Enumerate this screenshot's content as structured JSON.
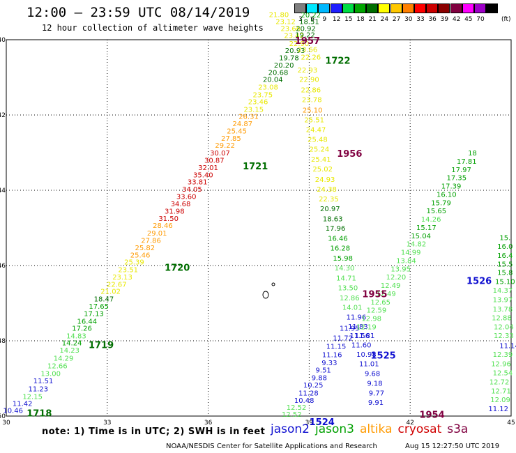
{
  "header": {
    "title": "12:00 – 23:59 UTC 08/14/2019",
    "subtitle": "12 hour collection of altimeter wave heights"
  },
  "colorbar": {
    "unit": "(ft)",
    "swatches": [
      {
        "label": "3",
        "color": "#7f7f7f"
      },
      {
        "label": "6",
        "color": "#00e8ff"
      },
      {
        "label": "9",
        "color": "#00b8ff"
      },
      {
        "label": "12",
        "color": "#1e1eff"
      },
      {
        "label": "15",
        "color": "#00dd44"
      },
      {
        "label": "18",
        "color": "#00a600"
      },
      {
        "label": "21",
        "color": "#006e00"
      },
      {
        "label": "24",
        "color": "#ffff00"
      },
      {
        "label": "27",
        "color": "#ffc800"
      },
      {
        "label": "30",
        "color": "#ff8000"
      },
      {
        "label": "33",
        "color": "#ff0000"
      },
      {
        "label": "36",
        "color": "#cc0000"
      },
      {
        "label": "39",
        "color": "#8b0000"
      },
      {
        "label": "42",
        "color": "#800040"
      },
      {
        "label": "45",
        "color": "#ff00ff"
      },
      {
        "label": "70",
        "color": "#9e00c8"
      },
      {
        "label": "",
        "color": "#000000"
      }
    ]
  },
  "footer": {
    "note": "note:  1) Time is in UTC;  2) SWH is in feet",
    "credit": "NOAA/NESDIS Center for Satellite Applications and Research",
    "timestamp": "Aug 15 12:27:50 UTC 2019"
  },
  "legend": [
    {
      "label": "jason2",
      "color": "#1010d0"
    },
    {
      "label": "jason3",
      "color": "#00a000"
    },
    {
      "label": "altika",
      "color": "#ff9a00"
    },
    {
      "label": "cryosat",
      "color": "#d00000"
    },
    {
      "label": "s3a",
      "color": "#800040"
    }
  ],
  "chart_data": {
    "type": "scatter",
    "xlim": [
      30,
      45
    ],
    "ylim": [
      -50,
      -40
    ],
    "x_ticks": [
      "30",
      "33",
      "36",
      "39",
      "42",
      "45"
    ],
    "x_tick_values": [
      30,
      33,
      36,
      39,
      42,
      45
    ],
    "y_ticks": [
      "-40",
      "-42",
      "-44",
      "-46",
      "-48",
      "-50"
    ],
    "y_tick_values": [
      -40,
      -42,
      -44,
      -46,
      -48,
      -50
    ],
    "grid": "dotted",
    "points": [
      {
        "x": 30.2,
        "y": -49.84,
        "v": "10.46",
        "c": "#1010d0"
      },
      {
        "x": 30.48,
        "y": -49.66,
        "v": "11.42",
        "c": "#1010d0"
      },
      {
        "x": 30.78,
        "y": -49.47,
        "v": "12.15",
        "c": "#52e052"
      },
      {
        "x": 30.95,
        "y": -49.27,
        "v": "11.23",
        "c": "#1010d0"
      },
      {
        "x": 31.1,
        "y": -49.06,
        "v": "11.51",
        "c": "#1010d0"
      },
      {
        "x": 31.32,
        "y": -48.86,
        "v": "13.00",
        "c": "#52e052"
      },
      {
        "x": 31.52,
        "y": -48.66,
        "v": "12.66",
        "c": "#52e052"
      },
      {
        "x": 31.7,
        "y": -48.45,
        "v": "14.29",
        "c": "#52e052"
      },
      {
        "x": 31.88,
        "y": -48.24,
        "v": "14.23",
        "c": "#52e052"
      },
      {
        "x": 31.95,
        "y": -48.05,
        "v": "14.24",
        "c": "#00a000"
      },
      {
        "x": 32.08,
        "y": -47.86,
        "v": "14.83",
        "c": "#52e052"
      },
      {
        "x": 32.25,
        "y": -47.66,
        "v": "17.26",
        "c": "#00a000"
      },
      {
        "x": 32.4,
        "y": -47.47,
        "v": "16.44",
        "c": "#00a000"
      },
      {
        "x": 32.6,
        "y": -47.27,
        "v": "17.13",
        "c": "#00a000"
      },
      {
        "x": 32.75,
        "y": -47.07,
        "v": "17.65",
        "c": "#00a000"
      },
      {
        "x": 32.9,
        "y": -46.88,
        "v": "18.47",
        "c": "#006e00"
      },
      {
        "x": 33.1,
        "y": -46.68,
        "v": "21.02",
        "c": "#e8e800"
      },
      {
        "x": 33.28,
        "y": -46.49,
        "v": "22.67",
        "c": "#e8e800"
      },
      {
        "x": 33.45,
        "y": -46.3,
        "v": "23.13",
        "c": "#e8e800"
      },
      {
        "x": 33.62,
        "y": -46.1,
        "v": "23.51",
        "c": "#e8e800"
      },
      {
        "x": 33.8,
        "y": -45.9,
        "v": "25.39",
        "c": "#e8e800"
      },
      {
        "x": 33.98,
        "y": -45.71,
        "v": "25.46",
        "c": "#ff9a00"
      },
      {
        "x": 34.12,
        "y": -45.52,
        "v": "25.82",
        "c": "#ff9a00"
      },
      {
        "x": 34.3,
        "y": -45.32,
        "v": "27.86",
        "c": "#ff9a00"
      },
      {
        "x": 34.48,
        "y": -45.13,
        "v": "29.01",
        "c": "#ff9a00"
      },
      {
        "x": 34.65,
        "y": -44.93,
        "v": "28.46",
        "c": "#ff9a00"
      },
      {
        "x": 34.82,
        "y": -44.74,
        "v": "31.50",
        "c": "#cc0000"
      },
      {
        "x": 35.0,
        "y": -44.55,
        "v": "31.98",
        "c": "#cc0000"
      },
      {
        "x": 35.18,
        "y": -44.35,
        "v": "34.68",
        "c": "#cc0000"
      },
      {
        "x": 35.35,
        "y": -44.16,
        "v": "33.60",
        "c": "#cc0000"
      },
      {
        "x": 35.52,
        "y": -43.96,
        "v": "34.05",
        "c": "#cc0000"
      },
      {
        "x": 35.68,
        "y": -43.77,
        "v": "33.81",
        "c": "#cc0000"
      },
      {
        "x": 35.85,
        "y": -43.58,
        "v": "35.40",
        "c": "#cc0000"
      },
      {
        "x": 36.0,
        "y": -43.39,
        "v": "32.01",
        "c": "#cc0000"
      },
      {
        "x": 36.18,
        "y": -43.19,
        "v": "30.87",
        "c": "#cc0000"
      },
      {
        "x": 36.35,
        "y": -43.0,
        "v": "30.07",
        "c": "#cc0000"
      },
      {
        "x": 36.5,
        "y": -42.8,
        "v": "29.22",
        "c": "#ff9a00"
      },
      {
        "x": 36.68,
        "y": -42.61,
        "v": "27.85",
        "c": "#ff9a00"
      },
      {
        "x": 36.85,
        "y": -42.42,
        "v": "25.45",
        "c": "#ff9a00"
      },
      {
        "x": 37.02,
        "y": -42.22,
        "v": "24.87",
        "c": "#ff9a00"
      },
      {
        "x": 37.2,
        "y": -42.03,
        "v": "26.31",
        "c": "#ff9a00"
      },
      {
        "x": 37.35,
        "y": -41.84,
        "v": "23.15",
        "c": "#e8e800"
      },
      {
        "x": 37.48,
        "y": -41.64,
        "v": "23.46",
        "c": "#e8e800"
      },
      {
        "x": 37.62,
        "y": -41.45,
        "v": "23.75",
        "c": "#e8e800"
      },
      {
        "x": 37.78,
        "y": -41.25,
        "v": "23.08",
        "c": "#e8e800"
      },
      {
        "x": 37.92,
        "y": -41.05,
        "v": "20.04",
        "c": "#006e00"
      },
      {
        "x": 38.08,
        "y": -40.86,
        "v": "20.68",
        "c": "#006e00"
      },
      {
        "x": 38.25,
        "y": -40.67,
        "v": "20.20",
        "c": "#006e00"
      },
      {
        "x": 38.4,
        "y": -40.47,
        "v": "19.78",
        "c": "#006e00"
      },
      {
        "x": 38.58,
        "y": -40.28,
        "v": "20.93",
        "c": "#006e00"
      },
      {
        "x": 38.7,
        "y": -40.09,
        "v": "22.90",
        "c": "#e8e800"
      },
      {
        "x": 38.55,
        "y": -39.88,
        "v": "23.42",
        "c": "#e8e800"
      },
      {
        "x": 38.45,
        "y": -39.69,
        "v": "23.66",
        "c": "#e8e800"
      },
      {
        "x": 38.3,
        "y": -39.51,
        "v": "23.12",
        "c": "#e8e800"
      },
      {
        "x": 38.1,
        "y": -39.32,
        "v": "21.80",
        "c": "#e8e800"
      },
      {
        "x": 39.05,
        "y": -39.33,
        "v": "20.22",
        "c": "#00a000"
      },
      {
        "x": 39.0,
        "y": -39.51,
        "v": "18.51",
        "c": "#006e00"
      },
      {
        "x": 38.9,
        "y": -39.69,
        "v": "20.92",
        "c": "#006e00"
      },
      {
        "x": 38.88,
        "y": -39.86,
        "v": "19.22",
        "c": "#006e00"
      },
      {
        "x": 38.95,
        "y": -40.25,
        "v": "23.66",
        "c": "#e8e800"
      },
      {
        "x": 39.05,
        "y": -40.45,
        "v": "22.26",
        "c": "#e8e800"
      },
      {
        "x": 38.95,
        "y": -40.8,
        "v": "22.93",
        "c": "#e8e800"
      },
      {
        "x": 39.0,
        "y": -41.05,
        "v": "22.90",
        "c": "#e8e800"
      },
      {
        "x": 39.05,
        "y": -41.32,
        "v": "22.86",
        "c": "#e8e800"
      },
      {
        "x": 39.08,
        "y": -41.58,
        "v": "23.78",
        "c": "#e8e800"
      },
      {
        "x": 39.1,
        "y": -41.86,
        "v": "25.10",
        "c": "#ff9a00"
      },
      {
        "x": 39.15,
        "y": -42.12,
        "v": "25.51",
        "c": "#e8e800"
      },
      {
        "x": 39.2,
        "y": -42.38,
        "v": "24.47",
        "c": "#e8e800"
      },
      {
        "x": 39.25,
        "y": -42.64,
        "v": "25.48",
        "c": "#e8e800"
      },
      {
        "x": 39.3,
        "y": -42.9,
        "v": "25.24",
        "c": "#e8e800"
      },
      {
        "x": 39.35,
        "y": -43.17,
        "v": "25.41",
        "c": "#e8e800"
      },
      {
        "x": 39.4,
        "y": -43.43,
        "v": "25.02",
        "c": "#e8e800"
      },
      {
        "x": 39.47,
        "y": -43.7,
        "v": "24.93",
        "c": "#e8e800"
      },
      {
        "x": 39.52,
        "y": -43.96,
        "v": "24.38",
        "c": "#e8e800"
      },
      {
        "x": 39.58,
        "y": -44.22,
        "v": "22.35",
        "c": "#e8e800"
      },
      {
        "x": 39.62,
        "y": -44.48,
        "v": "20.97",
        "c": "#006e00"
      },
      {
        "x": 39.7,
        "y": -44.75,
        "v": "18.63",
        "c": "#006e00"
      },
      {
        "x": 39.78,
        "y": -45.0,
        "v": "17.96",
        "c": "#006e00"
      },
      {
        "x": 39.85,
        "y": -45.27,
        "v": "16.46",
        "c": "#00a000"
      },
      {
        "x": 39.92,
        "y": -45.53,
        "v": "16.28",
        "c": "#00a000"
      },
      {
        "x": 40.0,
        "y": -45.8,
        "v": "15.98",
        "c": "#00a000"
      },
      {
        "x": 40.05,
        "y": -46.06,
        "v": "14.30",
        "c": "#52e052"
      },
      {
        "x": 40.1,
        "y": -46.32,
        "v": "14.71",
        "c": "#52e052"
      },
      {
        "x": 40.15,
        "y": -46.58,
        "v": "13.50",
        "c": "#52e052"
      },
      {
        "x": 40.2,
        "y": -46.85,
        "v": "12.86",
        "c": "#52e052"
      },
      {
        "x": 40.28,
        "y": -47.1,
        "v": "14.01",
        "c": "#52e052"
      },
      {
        "x": 40.4,
        "y": -47.36,
        "v": "11.96",
        "c": "#1010d0"
      },
      {
        "x": 40.45,
        "y": -47.61,
        "v": "11.83",
        "c": "#1010d0"
      },
      {
        "x": 40.5,
        "y": -47.85,
        "v": "11.56",
        "c": "#1010d0"
      },
      {
        "x": 40.55,
        "y": -48.1,
        "v": "11.60",
        "c": "#1010d0"
      },
      {
        "x": 40.7,
        "y": -48.35,
        "v": "10.98",
        "c": "#1010d0"
      },
      {
        "x": 40.78,
        "y": -48.6,
        "v": "11.01",
        "c": "#1010d0"
      },
      {
        "x": 40.88,
        "y": -48.86,
        "v": "9.68",
        "c": "#1010d0"
      },
      {
        "x": 40.95,
        "y": -49.12,
        "v": "9.18",
        "c": "#1010d0"
      },
      {
        "x": 41.0,
        "y": -49.38,
        "v": "9.77",
        "c": "#1010d0"
      },
      {
        "x": 40.98,
        "y": -49.63,
        "v": "9.91",
        "c": "#1010d0"
      },
      {
        "x": 40.2,
        "y": -47.66,
        "v": "11.95",
        "c": "#1010d0"
      },
      {
        "x": 40.0,
        "y": -47.92,
        "v": "11.72",
        "c": "#1010d0"
      },
      {
        "x": 39.8,
        "y": -48.14,
        "v": "11.15",
        "c": "#1010d0"
      },
      {
        "x": 39.68,
        "y": -48.36,
        "v": "11.16",
        "c": "#1010d0"
      },
      {
        "x": 39.6,
        "y": -48.57,
        "v": "9.33",
        "c": "#1010d0"
      },
      {
        "x": 39.42,
        "y": -48.77,
        "v": "9.51",
        "c": "#1010d0"
      },
      {
        "x": 39.3,
        "y": -48.97,
        "v": "9.88",
        "c": "#1010d0"
      },
      {
        "x": 39.12,
        "y": -49.17,
        "v": "10.25",
        "c": "#1010d0"
      },
      {
        "x": 38.98,
        "y": -49.38,
        "v": "11.28",
        "c": "#1010d0"
      },
      {
        "x": 38.85,
        "y": -49.57,
        "v": "10.48",
        "c": "#1010d0"
      },
      {
        "x": 38.62,
        "y": -49.76,
        "v": "12.52",
        "c": "#52e052"
      },
      {
        "x": 38.48,
        "y": -49.94,
        "v": "12.52",
        "c": "#52e052"
      },
      {
        "x": 40.65,
        "y": -47.85,
        "v": "11.81",
        "c": "#1010d0"
      },
      {
        "x": 40.7,
        "y": -47.62,
        "v": "12.19",
        "c": "#52e052"
      },
      {
        "x": 40.85,
        "y": -47.4,
        "v": "12.98",
        "c": "#52e052"
      },
      {
        "x": 41.0,
        "y": -47.18,
        "v": "12.59",
        "c": "#52e052"
      },
      {
        "x": 41.12,
        "y": -46.96,
        "v": "12.65",
        "c": "#52e052"
      },
      {
        "x": 41.28,
        "y": -46.74,
        "v": "12.49",
        "c": "#52e052"
      },
      {
        "x": 41.42,
        "y": -46.52,
        "v": "12.49",
        "c": "#52e052"
      },
      {
        "x": 41.58,
        "y": -46.3,
        "v": "12.20",
        "c": "#52e052"
      },
      {
        "x": 41.72,
        "y": -46.08,
        "v": "13.95",
        "c": "#52e052"
      },
      {
        "x": 41.88,
        "y": -45.86,
        "v": "13.84",
        "c": "#52e052"
      },
      {
        "x": 42.02,
        "y": -45.64,
        "v": "14.99",
        "c": "#52e052"
      },
      {
        "x": 42.18,
        "y": -45.42,
        "v": "14.82",
        "c": "#52e052"
      },
      {
        "x": 42.32,
        "y": -45.2,
        "v": "15.04",
        "c": "#00a000"
      },
      {
        "x": 42.48,
        "y": -44.98,
        "v": "15.17",
        "c": "#00a000"
      },
      {
        "x": 42.62,
        "y": -44.76,
        "v": "14.26",
        "c": "#52e052"
      },
      {
        "x": 42.78,
        "y": -44.54,
        "v": "15.65",
        "c": "#00a000"
      },
      {
        "x": 42.92,
        "y": -44.32,
        "v": "15.79",
        "c": "#00a000"
      },
      {
        "x": 43.08,
        "y": -44.1,
        "v": "16.10",
        "c": "#00a000"
      },
      {
        "x": 43.22,
        "y": -43.88,
        "v": "17.39",
        "c": "#00a000"
      },
      {
        "x": 43.38,
        "y": -43.66,
        "v": "17.35",
        "c": "#00a000"
      },
      {
        "x": 43.52,
        "y": -43.44,
        "v": "17.97",
        "c": "#00a000"
      },
      {
        "x": 43.68,
        "y": -43.22,
        "v": "17.81",
        "c": "#00a000"
      },
      {
        "x": 43.85,
        "y": -43.0,
        "v": "18",
        "c": "#00a000"
      },
      {
        "x": 44.95,
        "y": -48.12,
        "v": "11.14",
        "c": "#1010d0"
      },
      {
        "x": 44.75,
        "y": -48.35,
        "v": "12.39",
        "c": "#52e052"
      },
      {
        "x": 44.7,
        "y": -48.6,
        "v": "12.96",
        "c": "#52e052"
      },
      {
        "x": 44.75,
        "y": -48.84,
        "v": "12.54",
        "c": "#52e052"
      },
      {
        "x": 44.65,
        "y": -49.08,
        "v": "12.72",
        "c": "#52e052"
      },
      {
        "x": 44.7,
        "y": -49.32,
        "v": "12.71",
        "c": "#52e052"
      },
      {
        "x": 44.68,
        "y": -49.56,
        "v": "12.09",
        "c": "#52e052"
      },
      {
        "x": 44.62,
        "y": -49.8,
        "v": "11.12",
        "c": "#1010d0"
      },
      {
        "x": 44.78,
        "y": -47.85,
        "v": "12.33",
        "c": "#52e052"
      },
      {
        "x": 44.78,
        "y": -47.62,
        "v": "12.04",
        "c": "#52e052"
      },
      {
        "x": 44.72,
        "y": -47.38,
        "v": "12.88",
        "c": "#52e052"
      },
      {
        "x": 44.75,
        "y": -47.15,
        "v": "13.78",
        "c": "#52e052"
      },
      {
        "x": 44.75,
        "y": -46.9,
        "v": "13.97",
        "c": "#52e052"
      },
      {
        "x": 44.75,
        "y": -46.65,
        "v": "14.37",
        "c": "#52e052"
      },
      {
        "x": 44.82,
        "y": -46.42,
        "v": "15.10",
        "c": "#00a000"
      },
      {
        "x": 44.82,
        "y": -46.18,
        "v": "15.8",
        "c": "#00a000"
      },
      {
        "x": 44.82,
        "y": -45.95,
        "v": "15.5",
        "c": "#00a000"
      },
      {
        "x": 44.82,
        "y": -45.72,
        "v": "16.4",
        "c": "#00a000"
      },
      {
        "x": 44.82,
        "y": -45.48,
        "v": "16.0",
        "c": "#00a000"
      },
      {
        "x": 44.82,
        "y": -45.25,
        "v": "15.",
        "c": "#00a000"
      }
    ],
    "time_labels": [
      {
        "x": 30.98,
        "y": -49.92,
        "t": "1718",
        "c": "#006e00"
      },
      {
        "x": 32.82,
        "y": -48.1,
        "t": "1719",
        "c": "#006e00"
      },
      {
        "x": 35.08,
        "y": -46.05,
        "t": "1720",
        "c": "#006e00"
      },
      {
        "x": 37.4,
        "y": -43.35,
        "t": "1721",
        "c": "#006e00"
      },
      {
        "x": 39.85,
        "y": -40.55,
        "t": "1722",
        "c": "#006e00"
      },
      {
        "x": 38.95,
        "y": -40.02,
        "t": "1957",
        "c": "#800040"
      },
      {
        "x": 40.2,
        "y": -43.02,
        "t": "1956",
        "c": "#800040"
      },
      {
        "x": 40.95,
        "y": -46.75,
        "t": "1955",
        "c": "#800040"
      },
      {
        "x": 42.65,
        "y": -49.95,
        "t": "1954",
        "c": "#800040"
      },
      {
        "x": 41.2,
        "y": -48.38,
        "t": "1525",
        "c": "#1010d0"
      },
      {
        "x": 39.38,
        "y": -50.15,
        "t": "1524",
        "c": "#1010d0"
      },
      {
        "x": 44.05,
        "y": -46.4,
        "t": "1526",
        "c": "#1010d0"
      }
    ]
  }
}
